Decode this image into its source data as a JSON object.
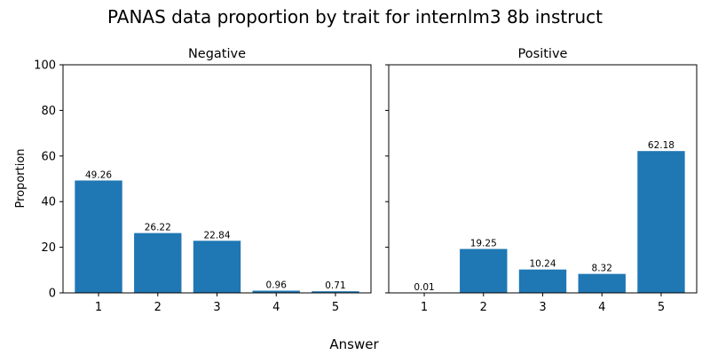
{
  "chart_data": {
    "title": "PANAS data proportion by trait for internlm3 8b instruct",
    "xlabel": "Answer",
    "ylabel": "Proportion",
    "color": "#1f77b4",
    "ylim": [
      0,
      100
    ],
    "yticks": [
      0,
      20,
      40,
      60,
      80,
      100
    ],
    "legend": "none",
    "grid": false,
    "panels": [
      {
        "type": "bar",
        "title": "Negative",
        "categories": [
          "1",
          "2",
          "3",
          "4",
          "5"
        ],
        "values": [
          49.26,
          26.22,
          22.84,
          0.96,
          0.71
        ],
        "value_labels": [
          "49.26",
          "26.22",
          "22.84",
          "0.96",
          "0.71"
        ]
      },
      {
        "type": "bar",
        "title": "Positive",
        "categories": [
          "1",
          "2",
          "3",
          "4",
          "5"
        ],
        "values": [
          0.01,
          19.25,
          10.24,
          8.32,
          62.18
        ],
        "value_labels": [
          "0.01",
          "19.25",
          "10.24",
          "8.32",
          "62.18"
        ]
      }
    ]
  }
}
